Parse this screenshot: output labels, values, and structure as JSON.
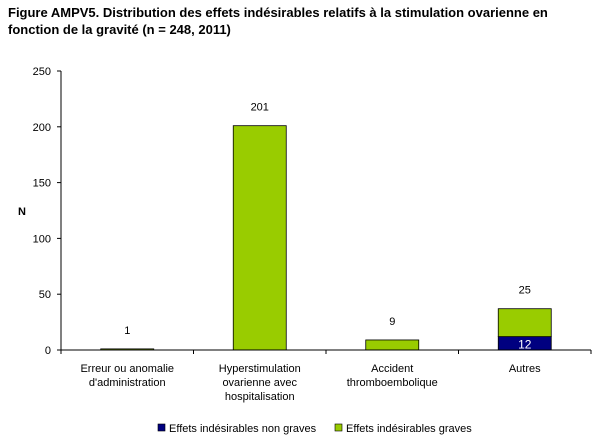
{
  "title": "Figure AMPV5. Distribution des effets indésirables relatifs à la stimulation ovarienne en fonction de la gravité (n = 248, 2011)",
  "chart_data": {
    "type": "bar",
    "stacked": true,
    "title": "Figure AMPV5. Distribution des effets indésirables relatifs à la stimulation ovarienne en fonction de la gravité (n = 248, 2011)",
    "xlabel": "",
    "ylabel": "N",
    "ylim": [
      0,
      250
    ],
    "yticks": [
      0,
      50,
      100,
      150,
      200,
      250
    ],
    "grid": false,
    "legend_position": "bottom",
    "categories": [
      [
        "Erreur ou anomalie",
        "d'administration"
      ],
      [
        "Hyperstimulation",
        "ovarienne avec",
        "hospitalisation"
      ],
      [
        "Accident",
        "thromboembolique"
      ],
      [
        "Autres"
      ]
    ],
    "series": [
      {
        "name": "Effets indésirables non graves",
        "color": "#000080",
        "values": [
          0,
          0,
          0,
          12
        ],
        "labels": [
          "",
          "",
          "",
          "12"
        ]
      },
      {
        "name": "Effets indésirables graves",
        "color": "#99cc00",
        "values": [
          1,
          201,
          9,
          25
        ],
        "labels": [
          "1",
          "201",
          "9",
          "25"
        ]
      }
    ]
  }
}
